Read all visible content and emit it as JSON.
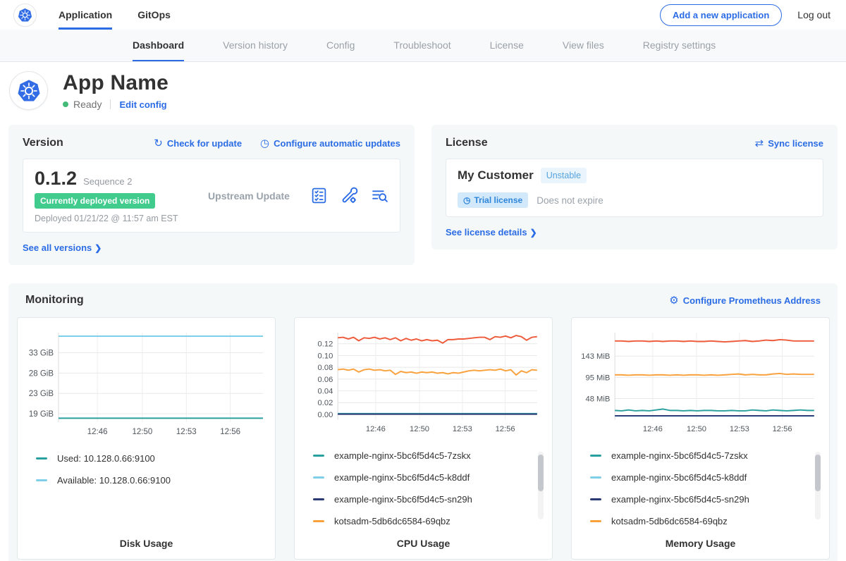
{
  "topnav": {
    "tabs": [
      {
        "label": "Application"
      },
      {
        "label": "GitOps"
      }
    ],
    "add_app_button": "Add a new application",
    "logout": "Log out"
  },
  "subnav": {
    "items": [
      "Dashboard",
      "Version history",
      "Config",
      "Troubleshoot",
      "License",
      "View files",
      "Registry settings"
    ]
  },
  "app_header": {
    "title": "App Name",
    "status": "Ready",
    "edit_config": "Edit config"
  },
  "icons": {
    "refresh": "↻",
    "clock": "◷",
    "sync": "⇄",
    "gear": "⚙",
    "chevron": "❯",
    "stopwatch": "◷"
  },
  "version_card": {
    "title": "Version",
    "check_update": "Check for update",
    "auto_updates": "Configure automatic updates",
    "version": "0.1.2",
    "sequence": "Sequence 2",
    "deployed_badge": "Currently deployed version",
    "deployed_at": "Deployed 01/21/22 @ 11:57 am EST",
    "update_type": "Upstream Update",
    "see_all": "See all versions"
  },
  "license_card": {
    "title": "License",
    "sync": "Sync license",
    "customer": "My Customer",
    "channel_badge": "Unstable",
    "type_badge": "Trial license",
    "expiry": "Does not expire",
    "details": "See license details"
  },
  "monitoring": {
    "title": "Monitoring",
    "configure": "Configure Prometheus Address"
  },
  "chart_data": [
    {
      "type": "line",
      "title": "Disk Usage",
      "ylim": [
        16.7,
        37.2
      ],
      "y_ticks": [
        {
          "value": 18.63,
          "label": "19 GiB"
        },
        {
          "value": 23.28,
          "label": "23 GiB"
        },
        {
          "value": 27.94,
          "label": "28 GiB"
        },
        {
          "value": 32.6,
          "label": "33 GiB"
        }
      ],
      "x_ticks": [
        {
          "pos": 0.19,
          "label": "12:46"
        },
        {
          "pos": 0.41,
          "label": "12:50"
        },
        {
          "pos": 0.625,
          "label": "12:53"
        },
        {
          "pos": 0.84,
          "label": "12:56"
        }
      ],
      "series": [
        {
          "name": "Available: 10.128.0.66:9100",
          "color": "#7fcfe8",
          "values": [
            36.4,
            36.4
          ]
        },
        {
          "name": "Used: 10.128.0.66:9100",
          "color": "#2aa09e",
          "values": [
            17.6,
            17.6
          ]
        }
      ],
      "legend": [
        {
          "label": "Used: 10.128.0.66:9100",
          "color": "#2aa09e"
        },
        {
          "label": "Available: 10.128.0.66:9100",
          "color": "#7fcfe8"
        }
      ],
      "scrollbar": false
    },
    {
      "type": "line",
      "title": "CPU Usage",
      "ylim": [
        -0.009,
        0.139
      ],
      "y_ticks": [
        {
          "value": 0.0,
          "label": "0.00"
        },
        {
          "value": 0.02,
          "label": "0.02"
        },
        {
          "value": 0.04,
          "label": "0.04"
        },
        {
          "value": 0.06,
          "label": "0.06"
        },
        {
          "value": 0.08,
          "label": "0.08"
        },
        {
          "value": 0.1,
          "label": "0.10"
        },
        {
          "value": 0.12,
          "label": "0.12"
        }
      ],
      "x_ticks": [
        {
          "pos": 0.19,
          "label": "12:46"
        },
        {
          "pos": 0.41,
          "label": "12:50"
        },
        {
          "pos": 0.625,
          "label": "12:53"
        },
        {
          "pos": 0.84,
          "label": "12:56"
        }
      ],
      "series": [
        {
          "name": "",
          "color": "#ee5a3a",
          "values": [
            0.13,
            0.131,
            0.128,
            0.131,
            0.125,
            0.13,
            0.129,
            0.131,
            0.128,
            0.13,
            0.127,
            0.13,
            0.125,
            0.129,
            0.126,
            0.128,
            0.125,
            0.127,
            0.125,
            0.126,
            0.121,
            0.127,
            0.127,
            0.128,
            0.128,
            0.129,
            0.13,
            0.131,
            0.131,
            0.127,
            0.132,
            0.131,
            0.133,
            0.13,
            0.134,
            0.132,
            0.126,
            0.131,
            0.132
          ]
        },
        {
          "name": "kotsadm-5db6dc6584-69qbz",
          "color": "#f9a13d",
          "values": [
            0.076,
            0.077,
            0.075,
            0.077,
            0.072,
            0.076,
            0.077,
            0.075,
            0.076,
            0.074,
            0.075,
            0.068,
            0.073,
            0.071,
            0.072,
            0.07,
            0.072,
            0.071,
            0.072,
            0.07,
            0.071,
            0.069,
            0.071,
            0.07,
            0.072,
            0.074,
            0.075,
            0.074,
            0.075,
            0.076,
            0.075,
            0.077,
            0.074,
            0.076,
            0.067,
            0.074,
            0.071,
            0.076,
            0.075
          ]
        },
        {
          "name": "example-nginx-5bc6f5d4c5-k8ddf",
          "color": "#7fcfe8",
          "values": [
            0.0016,
            0.0016
          ]
        },
        {
          "name": "example-nginx-5bc6f5d4c5-7zskx",
          "color": "#2aa09e",
          "values": [
            0.0011,
            0.0011
          ]
        },
        {
          "name": "example-nginx-5bc6f5d4c5-sn29h",
          "color": "#2b3a72",
          "values": [
            0.0005,
            0.0005
          ]
        }
      ],
      "legend": [
        {
          "label": "example-nginx-5bc6f5d4c5-7zskx",
          "color": "#2aa09e"
        },
        {
          "label": "example-nginx-5bc6f5d4c5-k8ddf",
          "color": "#7fcfe8"
        },
        {
          "label": "example-nginx-5bc6f5d4c5-sn29h",
          "color": "#2b3a72"
        },
        {
          "label": "kotsadm-5db6dc6584-69qbz",
          "color": "#f9a13d"
        }
      ],
      "scrollbar": true
    },
    {
      "type": "line",
      "title": "Memory Usage",
      "ylim": [
        0,
        196
      ],
      "y_ticks": [
        {
          "value": 47.7,
          "label": "48 MiB"
        },
        {
          "value": 95.4,
          "label": "95 MiB"
        },
        {
          "value": 143.1,
          "label": "143 MiB"
        }
      ],
      "x_ticks": [
        {
          "pos": 0.19,
          "label": "12:46"
        },
        {
          "pos": 0.41,
          "label": "12:50"
        },
        {
          "pos": 0.625,
          "label": "12:53"
        },
        {
          "pos": 0.84,
          "label": "12:56"
        }
      ],
      "series": [
        {
          "name": "",
          "color": "#ee5a3a",
          "values": [
            177,
            177,
            176,
            177,
            177,
            176,
            177,
            176,
            177,
            177,
            176,
            177,
            176,
            176,
            177,
            176,
            175,
            176,
            177,
            178,
            176,
            177,
            179,
            178,
            180,
            179,
            177,
            177,
            177,
            177
          ]
        },
        {
          "name": "kotsadm-5db6dc6584-69qbz",
          "color": "#f9a13d",
          "values": [
            101,
            101,
            100,
            101,
            101,
            100,
            101,
            101,
            100,
            101,
            100,
            101,
            101,
            100,
            101,
            100,
            101,
            102,
            103,
            101,
            102,
            101,
            101,
            103,
            104,
            102,
            103,
            102,
            102,
            102
          ]
        },
        {
          "name": "example-nginx-5bc6f5d4c5-7zskx",
          "color": "#2aa09e",
          "values": [
            21,
            20,
            22,
            20,
            21,
            20,
            22,
            24,
            21,
            21,
            20,
            21,
            20,
            21,
            21,
            20,
            20,
            21,
            20,
            20,
            22,
            21,
            20,
            22,
            21,
            20,
            21,
            22,
            21,
            21
          ]
        },
        {
          "name": "example-nginx-5bc6f5d4c5-k8ddf",
          "color": "#7fcfe8",
          "values": [
            8.5,
            8.5
          ]
        },
        {
          "name": "example-nginx-5bc6f5d4c5-sn29h",
          "color": "#2b3a72",
          "values": [
            9,
            9
          ]
        }
      ],
      "legend": [
        {
          "label": "example-nginx-5bc6f5d4c5-7zskx",
          "color": "#2aa09e"
        },
        {
          "label": "example-nginx-5bc6f5d4c5-k8ddf",
          "color": "#7fcfe8"
        },
        {
          "label": "example-nginx-5bc6f5d4c5-sn29h",
          "color": "#2b3a72"
        },
        {
          "label": "kotsadm-5db6dc6584-69qbz",
          "color": "#f9a13d"
        }
      ],
      "scrollbar": true
    }
  ],
  "colors": {
    "accent_blue": "#2b6ce5",
    "status_green": "#44bb77",
    "deployed_badge_green": "#41cb8d"
  }
}
